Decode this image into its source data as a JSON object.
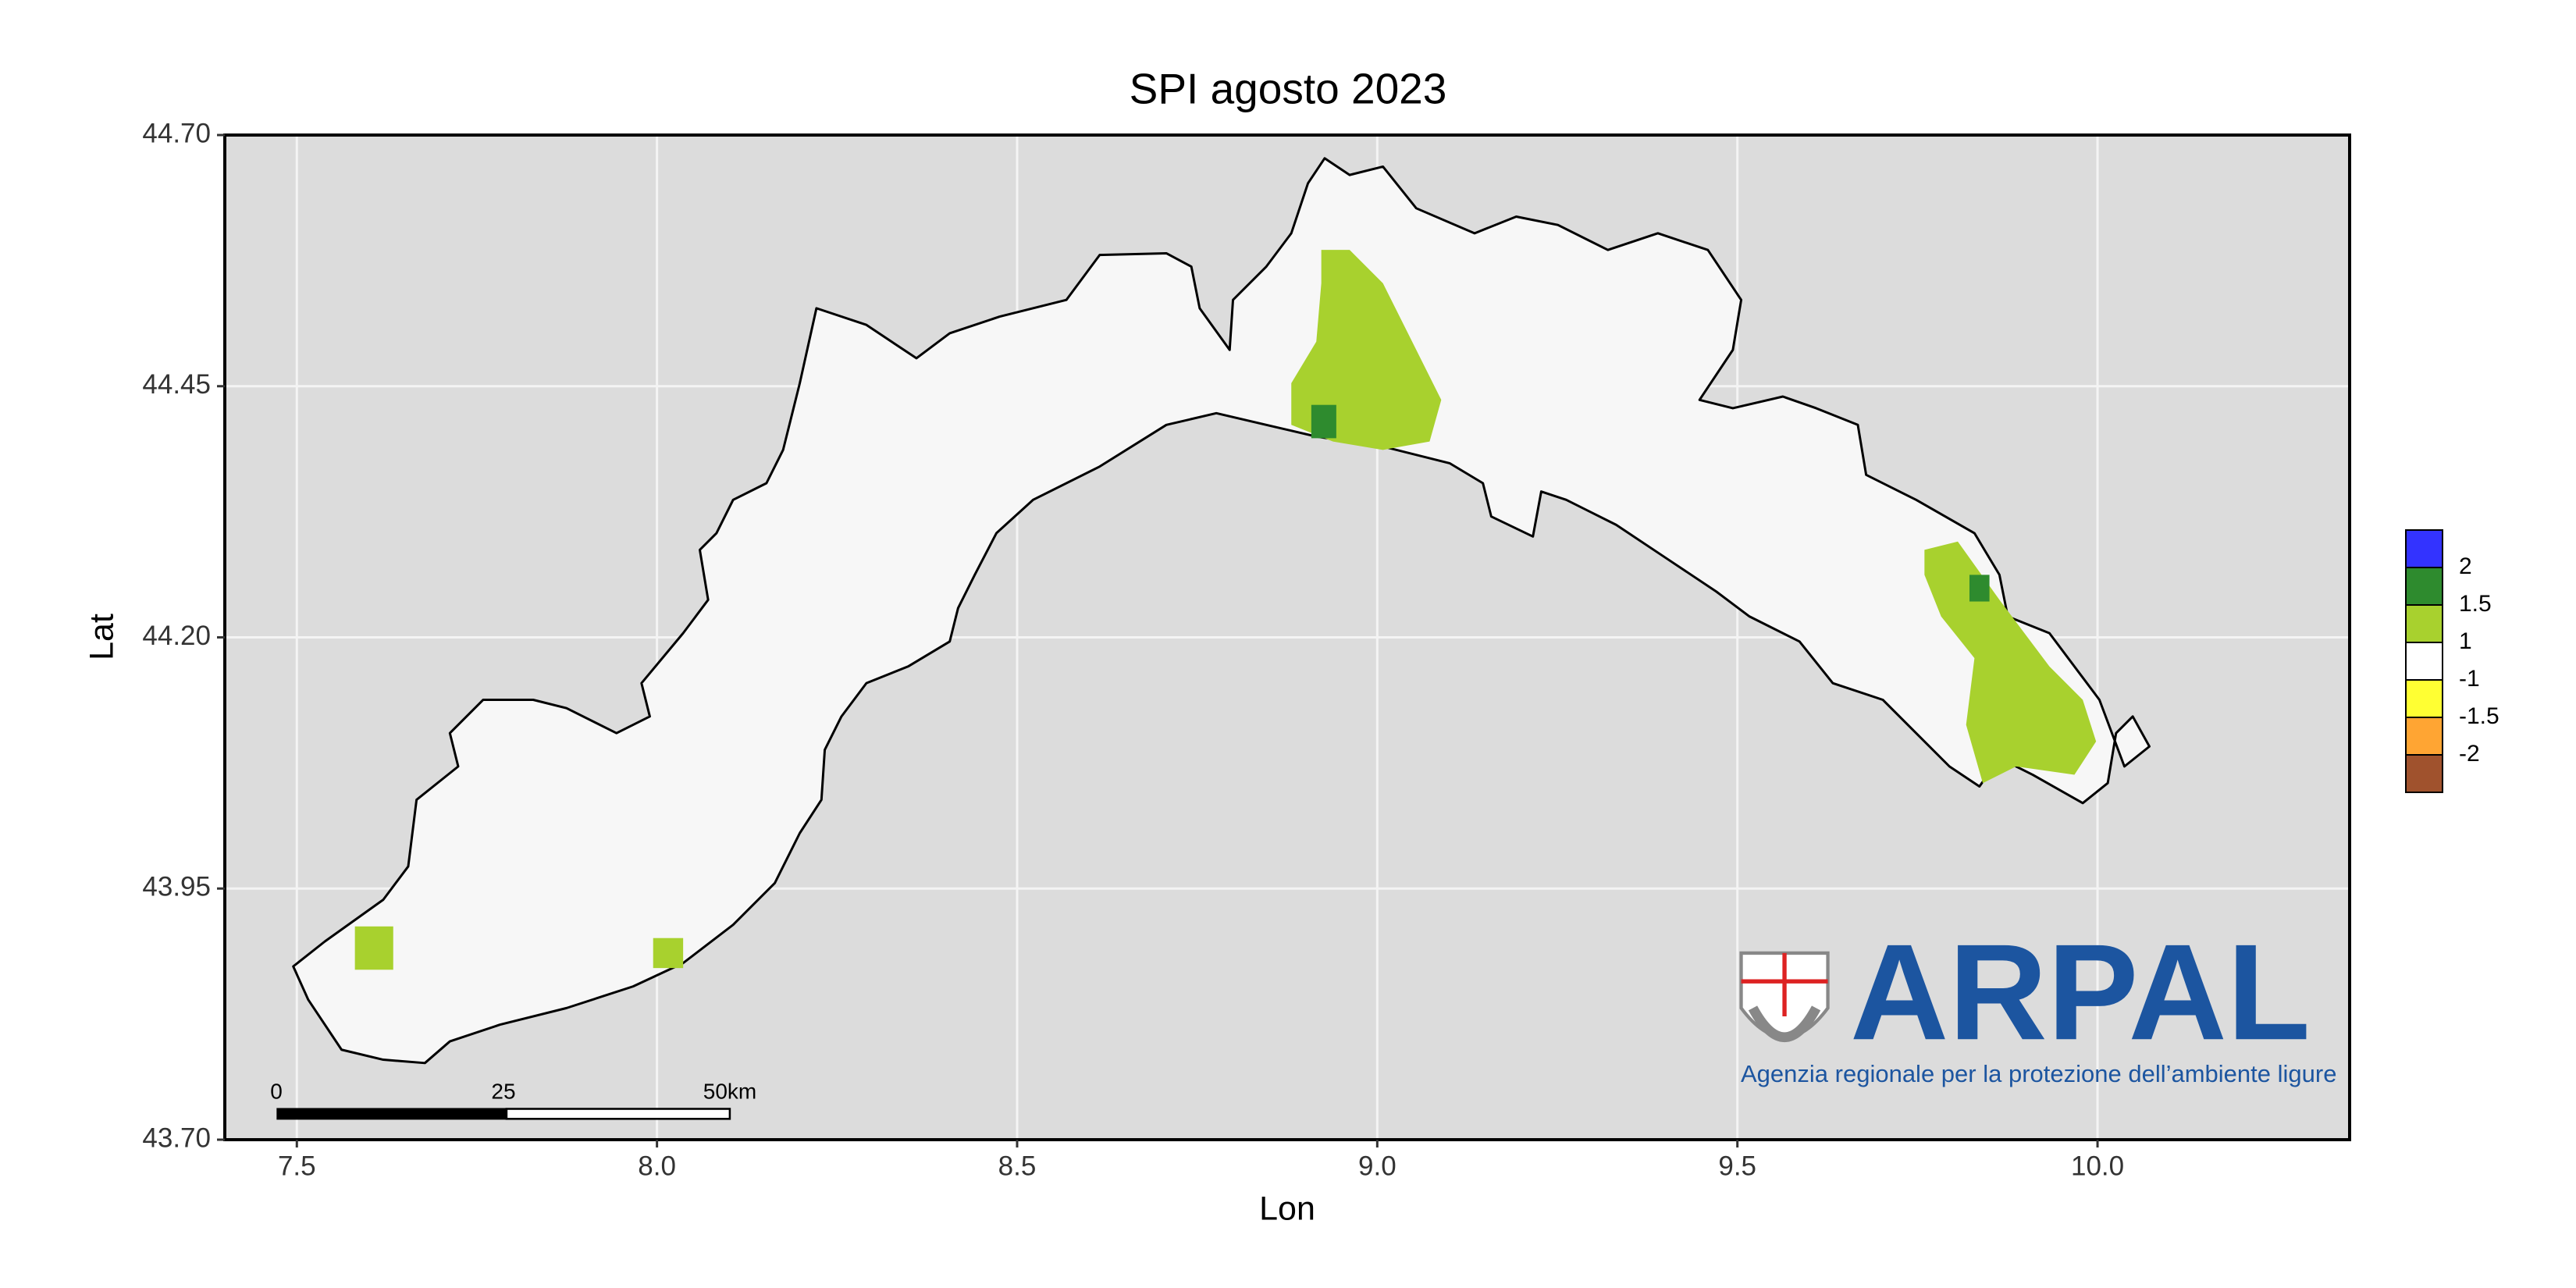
{
  "chart_data": {
    "type": "map",
    "title": "SPI agosto 2023",
    "xlabel": "Lon",
    "ylabel": "Lat",
    "xlim": [
      7.4,
      10.35
    ],
    "ylim": [
      43.7,
      44.7
    ],
    "xticks": [
      7.5,
      {
        "value": 8,
        "label": "8.0"
      },
      8.5,
      {
        "value": 9,
        "label": "9.0"
      },
      9.5,
      {
        "value": 10,
        "label": "10.0"
      }
    ],
    "yticks": [
      {
        "value": 43.7,
        "label": "43.70"
      },
      43.95,
      {
        "value": 44.2,
        "label": "44.20"
      },
      44.45,
      {
        "value": 44.7,
        "label": "44.70"
      }
    ],
    "grid": true,
    "legend": {
      "colors": [
        "#3333ff",
        "#2e8b2e",
        "#a8d12e",
        "#ffffff",
        "#ffff33",
        "#ffa533",
        "#a0522d"
      ],
      "labels": [
        2,
        1.5,
        1,
        -1,
        -1.5,
        -2
      ]
    },
    "scale_bar": {
      "labels": [
        "0",
        "25",
        "50km"
      ]
    },
    "logo": {
      "name": "ARPAL",
      "tagline": "Agenzia regionale per la protezione dell’ambiente ligure"
    }
  }
}
